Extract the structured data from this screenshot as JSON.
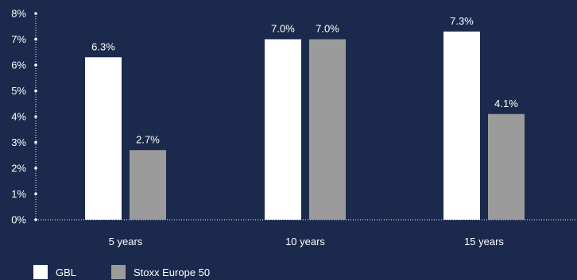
{
  "chart_data": {
    "type": "bar",
    "categories": [
      "5 years",
      "10 years",
      "15 years"
    ],
    "series": [
      {
        "name": "GBL",
        "values": [
          6.3,
          7.0,
          7.3
        ],
        "labels": [
          "6.3%",
          "7.0%",
          "7.3%"
        ],
        "color": "#ffffff"
      },
      {
        "name": "Stoxx Europe 50",
        "values": [
          2.7,
          7.0,
          4.1
        ],
        "labels": [
          "2.7%",
          "7.0%",
          "4.1%"
        ],
        "color": "#9b9b9b"
      }
    ],
    "y_ticks": [
      "0%",
      "1%",
      "2%",
      "3%",
      "4%",
      "5%",
      "6%",
      "7%",
      "8%"
    ],
    "ylim": [
      0,
      8
    ],
    "title": "",
    "xlabel": "",
    "ylabel": "",
    "grid": false,
    "legend_position": "bottom-left",
    "background_color": "#1b2a4c"
  }
}
